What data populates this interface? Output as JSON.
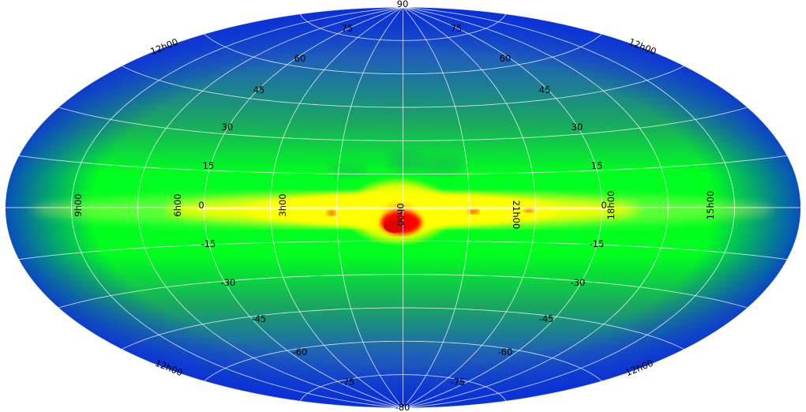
{
  "map": {
    "projection": "Aitoff",
    "colors": {
      "edge": "#0a2fd8",
      "low": "#1f5fb8",
      "mid": "#1aa860",
      "band": "#00ff1e",
      "bulge_yellow": "#ffff00",
      "bulge_orange": "#ffaa00",
      "core": "#ff0000",
      "grid": "#ffffff"
    },
    "labels": {
      "north_pole": "90",
      "south_pole": "-80",
      "lat_left": [
        "75",
        "60",
        "45",
        "30",
        "15",
        "0",
        "-15",
        "-30",
        "-45",
        "-60",
        "-75"
      ],
      "lat_right": [
        "75",
        "60",
        "45",
        "30",
        "15",
        "0",
        "-15",
        "-30",
        "-45",
        "-60",
        "-75"
      ],
      "ra_top_left": "12h00",
      "ra_top_right": "12h00",
      "ra_bottom_left": "12h00",
      "ra_bottom_right": "12h00",
      "ra_equator": [
        "9h00",
        "6h00",
        "3h00",
        "0h00",
        "21h00",
        "18h00",
        "15h00"
      ]
    }
  }
}
